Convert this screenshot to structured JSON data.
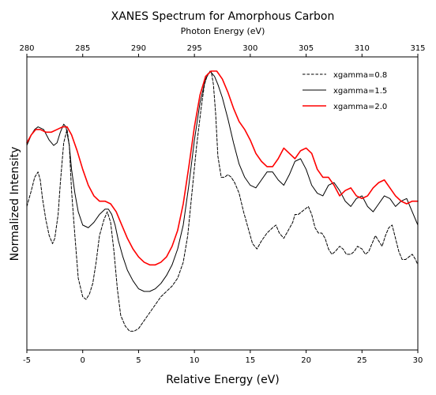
{
  "chart_data": {
    "type": "line",
    "title": "XANES Spectrum for Amorphous Carbon",
    "xlabel": "Relative Energy (eV)",
    "ylabel": "Normalized Intensity",
    "secondary_xlabel": "Photon Energy (eV)",
    "xlim": [
      -5,
      30
    ],
    "secondary_xlim": [
      280,
      315
    ],
    "ylim": [
      0,
      1.0
    ],
    "x_ticks": [
      "-5",
      "0",
      "5",
      "10",
      "15",
      "20",
      "25",
      "30"
    ],
    "secondary_x_ticks": [
      "280",
      "285",
      "290",
      "295",
      "300",
      "305",
      "310",
      "315"
    ],
    "grid": false,
    "legend_position": "top-right",
    "series": [
      {
        "name": "xgamma=0.8",
        "color": "#000000",
        "style": "dashed",
        "x": [
          -5,
          -4.6,
          -4.3,
          -4.0,
          -3.8,
          -3.6,
          -3.3,
          -3.0,
          -2.7,
          -2.5,
          -2.2,
          -2.0,
          -1.7,
          -1.4,
          -1.2,
          -1.0,
          -0.7,
          -0.4,
          0.0,
          0.3,
          0.6,
          0.9,
          1.2,
          1.5,
          1.9,
          2.2,
          2.5,
          2.8,
          3.1,
          3.4,
          3.8,
          4.2,
          4.6,
          5.0,
          5.5,
          6.0,
          6.5,
          7.0,
          7.5,
          8.0,
          8.5,
          9.0,
          9.4,
          9.8,
          10.2,
          10.6,
          10.9,
          11.2,
          11.5,
          11.7,
          11.9,
          12.1,
          12.4,
          12.7,
          13.0,
          13.3,
          13.6,
          14.0,
          14.4,
          14.8,
          15.2,
          15.6,
          16.0,
          16.5,
          17.0,
          17.3,
          17.6,
          18.0,
          18.4,
          18.8,
          19.0,
          19.3,
          19.6,
          19.9,
          20.2,
          20.5,
          20.8,
          21.1,
          21.4,
          21.7,
          22.0,
          22.3,
          22.6,
          23.0,
          23.3,
          23.6,
          24.0,
          24.3,
          24.6,
          25.0,
          25.3,
          25.6,
          25.9,
          26.2,
          26.5,
          26.8,
          27.1,
          27.4,
          27.7,
          28.0,
          28.3,
          28.6,
          28.9,
          29.2,
          29.5,
          29.8,
          30.0
        ],
        "y": [
          0.49,
          0.55,
          0.6,
          0.62,
          0.59,
          0.52,
          0.44,
          0.38,
          0.35,
          0.37,
          0.46,
          0.58,
          0.73,
          0.78,
          0.72,
          0.55,
          0.38,
          0.22,
          0.15,
          0.14,
          0.16,
          0.2,
          0.28,
          0.38,
          0.44,
          0.47,
          0.43,
          0.32,
          0.18,
          0.08,
          0.04,
          0.02,
          0.02,
          0.03,
          0.06,
          0.09,
          0.12,
          0.15,
          0.17,
          0.19,
          0.22,
          0.28,
          0.38,
          0.55,
          0.72,
          0.86,
          0.95,
          0.99,
          1.0,
          0.95,
          0.84,
          0.68,
          0.6,
          0.6,
          0.61,
          0.6,
          0.58,
          0.54,
          0.47,
          0.41,
          0.35,
          0.33,
          0.36,
          0.39,
          0.41,
          0.42,
          0.39,
          0.37,
          0.4,
          0.43,
          0.46,
          0.46,
          0.47,
          0.48,
          0.49,
          0.46,
          0.41,
          0.39,
          0.39,
          0.37,
          0.33,
          0.31,
          0.32,
          0.34,
          0.33,
          0.31,
          0.31,
          0.32,
          0.34,
          0.33,
          0.31,
          0.32,
          0.35,
          0.38,
          0.36,
          0.34,
          0.38,
          0.41,
          0.42,
          0.37,
          0.32,
          0.29,
          0.29,
          0.3,
          0.31,
          0.29,
          0.27
        ]
      },
      {
        "name": "xgamma=1.5",
        "color": "#000000",
        "style": "solid",
        "x": [
          -5,
          -4.6,
          -4.3,
          -4.0,
          -3.5,
          -3.0,
          -2.6,
          -2.3,
          -2.0,
          -1.7,
          -1.5,
          -1.2,
          -1.0,
          -0.7,
          -0.4,
          0.0,
          0.5,
          1.0,
          1.5,
          2.0,
          2.3,
          2.6,
          2.9,
          3.2,
          3.6,
          4.0,
          4.5,
          5.0,
          5.5,
          6.0,
          6.5,
          7.0,
          7.5,
          8.0,
          8.5,
          9.0,
          9.5,
          10.0,
          10.5,
          11.0,
          11.4,
          11.8,
          12.1,
          12.5,
          13.0,
          13.5,
          14.0,
          14.5,
          15.0,
          15.5,
          16.0,
          16.5,
          17.0,
          17.5,
          18.0,
          18.5,
          19.0,
          19.5,
          20.0,
          20.5,
          21.0,
          21.5,
          22.0,
          22.5,
          23.0,
          23.5,
          24.0,
          24.5,
          25.0,
          25.5,
          26.0,
          26.5,
          27.0,
          27.5,
          28.0,
          28.5,
          29.0,
          29.5,
          30.0
        ],
        "y": [
          0.72,
          0.76,
          0.78,
          0.79,
          0.78,
          0.74,
          0.72,
          0.73,
          0.77,
          0.8,
          0.79,
          0.72,
          0.63,
          0.54,
          0.47,
          0.42,
          0.41,
          0.43,
          0.46,
          0.48,
          0.48,
          0.46,
          0.42,
          0.36,
          0.3,
          0.25,
          0.21,
          0.18,
          0.17,
          0.17,
          0.18,
          0.2,
          0.23,
          0.27,
          0.33,
          0.42,
          0.57,
          0.74,
          0.88,
          0.97,
          1.0,
          0.98,
          0.95,
          0.9,
          0.82,
          0.73,
          0.65,
          0.6,
          0.57,
          0.56,
          0.59,
          0.62,
          0.62,
          0.59,
          0.57,
          0.61,
          0.66,
          0.67,
          0.63,
          0.57,
          0.54,
          0.53,
          0.57,
          0.58,
          0.55,
          0.51,
          0.49,
          0.52,
          0.53,
          0.49,
          0.47,
          0.5,
          0.53,
          0.52,
          0.49,
          0.51,
          0.52,
          0.47,
          0.42
        ]
      },
      {
        "name": "xgamma=2.0",
        "color": "#ff0000",
        "style": "solid",
        "x": [
          -5,
          -4.6,
          -4.2,
          -3.8,
          -3.3,
          -2.8,
          -2.3,
          -1.8,
          -1.4,
          -1.0,
          -0.5,
          0.0,
          0.5,
          1.0,
          1.5,
          2.0,
          2.5,
          3.0,
          3.5,
          4.0,
          4.5,
          5.0,
          5.5,
          6.0,
          6.5,
          7.0,
          7.5,
          8.0,
          8.5,
          9.0,
          9.5,
          10.0,
          10.5,
          11.0,
          11.5,
          12.0,
          12.5,
          13.0,
          13.5,
          14.0,
          14.5,
          15.0,
          15.5,
          16.0,
          16.5,
          17.0,
          17.5,
          18.0,
          18.5,
          19.0,
          19.5,
          20.0,
          20.5,
          21.0,
          21.5,
          22.0,
          22.5,
          23.0,
          23.5,
          24.0,
          24.5,
          25.0,
          25.5,
          26.0,
          26.5,
          27.0,
          27.5,
          28.0,
          28.5,
          29.0,
          29.5,
          30.0
        ],
        "y": [
          0.73,
          0.76,
          0.78,
          0.78,
          0.77,
          0.77,
          0.78,
          0.79,
          0.79,
          0.76,
          0.7,
          0.63,
          0.57,
          0.53,
          0.51,
          0.51,
          0.5,
          0.47,
          0.42,
          0.37,
          0.33,
          0.3,
          0.28,
          0.27,
          0.27,
          0.28,
          0.3,
          0.34,
          0.4,
          0.5,
          0.64,
          0.79,
          0.91,
          0.98,
          1.0,
          1.0,
          0.97,
          0.92,
          0.86,
          0.81,
          0.78,
          0.74,
          0.69,
          0.66,
          0.64,
          0.64,
          0.67,
          0.71,
          0.69,
          0.67,
          0.7,
          0.71,
          0.69,
          0.63,
          0.6,
          0.6,
          0.57,
          0.53,
          0.55,
          0.56,
          0.53,
          0.52,
          0.53,
          0.56,
          0.58,
          0.59,
          0.56,
          0.53,
          0.51,
          0.5,
          0.51,
          0.51
        ]
      }
    ]
  }
}
